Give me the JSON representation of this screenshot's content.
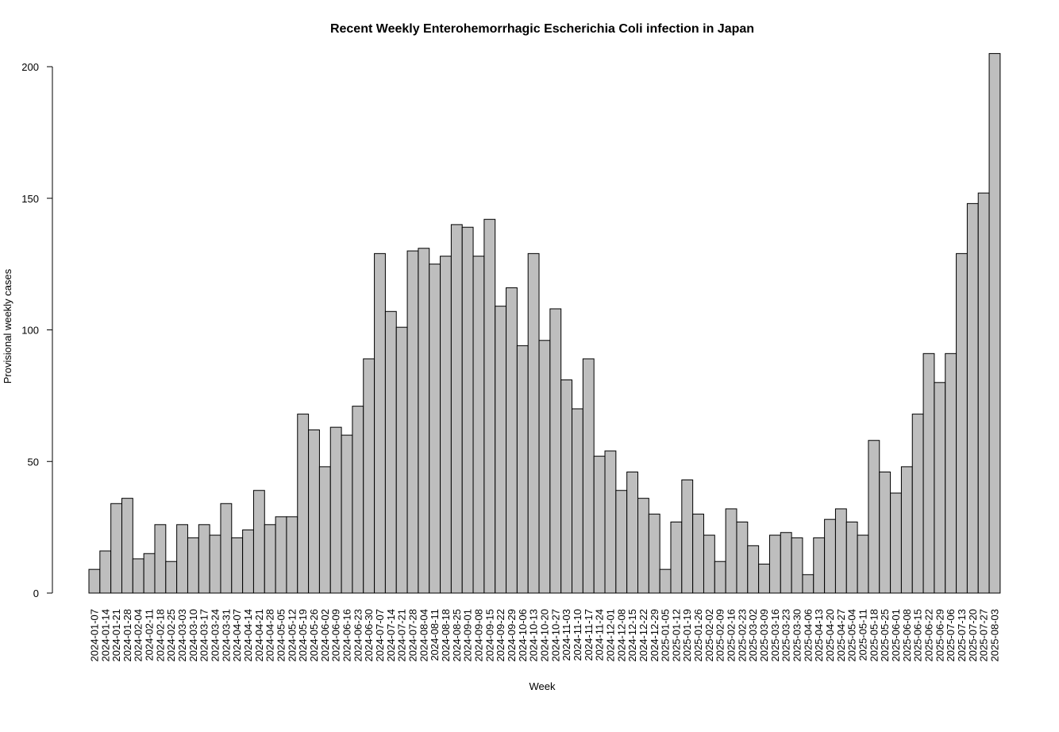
{
  "chart_data": {
    "type": "bar",
    "title": "Recent Weekly Enterohemorrhagic Escherichia Coli infection in Japan",
    "xlabel": "Week",
    "ylabel": "Provisional weekly cases",
    "ylim": [
      0,
      205
    ],
    "yticks": [
      0,
      50,
      100,
      150,
      200
    ],
    "colors": {
      "bar_fill": "#bebebe",
      "bar_stroke": "#000000",
      "axis": "#000000"
    },
    "categories": [
      "2024-01-07",
      "2024-01-14",
      "2024-01-21",
      "2024-01-28",
      "2024-02-04",
      "2024-02-11",
      "2024-02-18",
      "2024-02-25",
      "2024-03-03",
      "2024-03-10",
      "2024-03-17",
      "2024-03-24",
      "2024-03-31",
      "2024-04-07",
      "2024-04-14",
      "2024-04-21",
      "2024-04-28",
      "2024-05-05",
      "2024-05-12",
      "2024-05-19",
      "2024-05-26",
      "2024-06-02",
      "2024-06-09",
      "2024-06-16",
      "2024-06-23",
      "2024-06-30",
      "2024-07-07",
      "2024-07-14",
      "2024-07-21",
      "2024-07-28",
      "2024-08-04",
      "2024-08-11",
      "2024-08-18",
      "2024-08-25",
      "2024-09-01",
      "2024-09-08",
      "2024-09-15",
      "2024-09-22",
      "2024-09-29",
      "2024-10-06",
      "2024-10-13",
      "2024-10-20",
      "2024-10-27",
      "2024-11-03",
      "2024-11-10",
      "2024-11-17",
      "2024-11-24",
      "2024-12-01",
      "2024-12-08",
      "2024-12-15",
      "2024-12-22",
      "2024-12-29",
      "2025-01-05",
      "2025-01-12",
      "2025-01-19",
      "2025-01-26",
      "2025-02-02",
      "2025-02-09",
      "2025-02-16",
      "2025-02-23",
      "2025-03-02",
      "2025-03-09",
      "2025-03-16",
      "2025-03-23",
      "2025-03-30",
      "2025-04-06",
      "2025-04-13",
      "2025-04-20",
      "2025-04-27",
      "2025-05-04",
      "2025-05-11",
      "2025-05-18",
      "2025-05-25",
      "2025-06-01",
      "2025-06-08",
      "2025-06-15",
      "2025-06-22",
      "2025-06-29",
      "2025-07-06",
      "2025-07-13",
      "2025-07-20",
      "2025-07-27",
      "2025-08-03"
    ],
    "tick_labels": [
      "2024-01-07",
      "2024-01-14",
      "2024-01-21",
      "2024-01-28",
      "2024-02-04",
      "2024-02-11",
      "2024-02-18",
      "2024-02-25",
      "2024-03-03",
      "2024-03-10",
      "2024-03-17",
      "2024-03-24",
      "2024-03-31",
      "2024-04-07",
      "2024-04-14",
      "2024-04-21",
      "2024-04-28",
      "2024-05-05",
      "2024-05-12",
      "2024-05-19",
      "2024-05-26",
      "2024-06-02",
      "2024-06-09",
      "2024-06-16",
      "2024-06-23",
      "2024-06-30",
      "2024-07-07",
      "2024-07-14",
      "2024-07-21",
      "2024-07-28",
      "2024-08-04",
      "2024-08-11",
      "2024-08-18",
      "2024-08-25",
      "2024-09-01",
      "2024-09-08",
      "2024-09-15",
      "2024-09-22",
      "2024-09-29",
      "2024-10-06",
      "2024-10-13",
      "2024-10-20",
      "2024-10-27",
      "2024-11-03",
      "2024-11-10",
      "2024-11-17",
      "2024-11-24",
      "2024-12-01",
      "2024-12-08",
      "2024-12-15",
      "2024-12-22",
      "2024-12-29",
      "2025-01-05",
      "2025-01-12",
      "2025-01-19",
      "2025-01-26",
      "2025-02-02",
      "2025-02-09",
      "2025-02-16",
      "2025-02-23",
      "2025-03-02",
      "2025-03-09",
      "2025-03-16",
      "2025-03-23",
      "2025-03-30",
      "2025-04-06",
      "2025-04-13",
      "2025-04-20",
      "2025-04-27",
      "2025-05-04",
      "2025-05-11",
      "2025-05-18",
      "2025-05-25",
      "2025-06-01",
      "2025-06-08",
      "2025-06-15",
      "2025-06-22",
      "2025-06-29",
      "2025-07-06",
      "2025-07-13",
      "2025-07-20",
      "2025-07-27",
      "2025-08-03"
    ],
    "values": [
      9,
      16,
      34,
      36,
      13,
      15,
      26,
      12,
      26,
      21,
      26,
      22,
      34,
      21,
      24,
      39,
      26,
      29,
      29,
      68,
      62,
      48,
      63,
      60,
      71,
      89,
      129,
      107,
      101,
      130,
      131,
      125,
      128,
      140,
      139,
      128,
      142,
      109,
      116,
      94,
      129,
      96,
      108,
      81,
      70,
      89,
      52,
      54,
      39,
      46,
      36,
      30,
      9,
      27,
      43,
      30,
      22,
      12,
      32,
      27,
      18,
      11,
      22,
      23,
      21,
      7,
      21,
      28,
      32,
      27,
      22,
      58,
      46,
      38,
      48,
      68,
      91,
      80,
      91,
      129,
      148,
      152,
      205
    ],
    "grid": false,
    "legend": "none"
  }
}
